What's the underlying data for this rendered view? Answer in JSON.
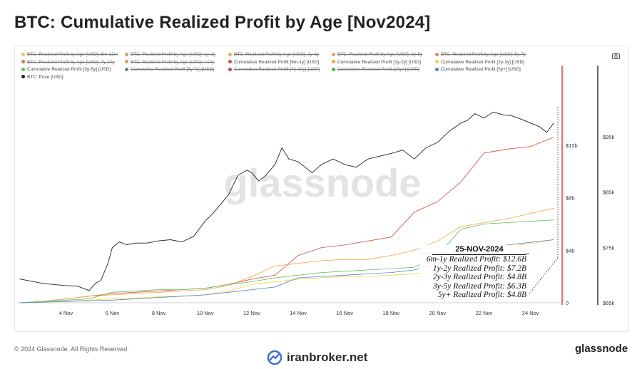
{
  "page": {
    "title": "BTC: Cumulative Realized Profit by Age [Nov2024]",
    "footer_left": "© 2024 Glassnode. All Rights Reserved.",
    "footer_right": "glassnode",
    "watermark": "glassnode",
    "broker": "iranbroker.net",
    "camera_icon": "camera-icon"
  },
  "legend": [
    {
      "label": "BTC: Realized Profit by Age [USD]: 6m-12m",
      "color": "#e7c56a",
      "struck": true
    },
    {
      "label": "BTC: Realized Profit by Age [USD]: 1y-2y",
      "color": "#e99a4f",
      "struck": true
    },
    {
      "label": "BTC: Realized Profit by Age [USD]: 2y-3y",
      "color": "#e3b24f",
      "struck": true
    },
    {
      "label": "BTC: Realized Profit by Age [USD]: 3y-5y",
      "color": "#e3a060",
      "struck": true
    },
    {
      "label": "BTC: Realized Profit by Age [USD]: 5y-7y",
      "color": "#e08a54",
      "struck": true
    },
    {
      "label": "BTC: Realized Profit by Age [USD]: 7y-10y",
      "color": "#d9743f",
      "struck": true
    },
    {
      "label": "BTC: Realized Profit by Age [USD]: >10y",
      "color": "#d9a140",
      "struck": true
    },
    {
      "label": "Cumulative Realized Profit [6m-1y] [USD]",
      "color": "#e0473e",
      "struck": false
    },
    {
      "label": "Cumulative Realized Profit [1y-2y] [USD]",
      "color": "#f3a43a",
      "struck": false
    },
    {
      "label": "Cumulative Realized Profit [2y-3y] [USD]",
      "color": "#f2d23a",
      "struck": false
    },
    {
      "label": "Cumulative Realized Profit [3y-5y] [USD]",
      "color": "#5cc05e",
      "struck": false
    },
    {
      "label": "Cumulative Realized Profit [5y-7y] [USD]",
      "color": "#3fa14a",
      "struck": true
    },
    {
      "label": "Cumulative Realized Profit [7y-10y] [USD]",
      "color": "#c8473e",
      "struck": true
    },
    {
      "label": "Cumulative Realized Profit [10y+] [USD]",
      "color": "#47b04a",
      "struck": true
    },
    {
      "label": "Cumulative Realized Profit [5y+] [USD]",
      "color": "#4f7fd6",
      "struck": false
    },
    {
      "label": "BTC: Price [USD]",
      "color": "#222222",
      "struck": false
    }
  ],
  "annotation": {
    "date": "25-NOV-2024",
    "lines": [
      "6m-1y Realized Profit: $12.6B",
      "1y-2y Realized Profit: $7.2B",
      "2y-3y Realized Profit: $4.8B",
      "3y-5y Realized Profit: $6.3B",
      "5y+ Realized Profit: $4.8B"
    ]
  },
  "chart_data": {
    "type": "line",
    "x_ticks": [
      "4 Nov",
      "6 Nov",
      "8 Nov",
      "10 Nov",
      "12 Nov",
      "14 Nov",
      "16 Nov",
      "18 Nov",
      "20 Nov",
      "22 Nov",
      "24 Nov"
    ],
    "x_tick_days": [
      4,
      6,
      8,
      10,
      12,
      14,
      16,
      18,
      20,
      22,
      24
    ],
    "x_range_days": [
      1.9,
      25.3
    ],
    "y_left_ticks": [
      "0",
      "$4b",
      "$8b",
      "$12b"
    ],
    "y_left_values": [
      0,
      4,
      8,
      12
    ],
    "y_left_range": [
      0,
      16
    ],
    "y_right_ticks": [
      "$65k",
      "$75k",
      "$85k",
      "$95k"
    ],
    "y_right_values": [
      65000,
      75000,
      85000,
      95000
    ],
    "y_right_range": [
      65000,
      103000
    ],
    "colors": {
      "red": "#e0473e",
      "orange": "#f3a43a",
      "yellow": "#f2d23a",
      "green": "#5cc05e",
      "blue": "#4f7fd6",
      "price": "#222222",
      "cursor": "#d22b2b"
    },
    "series": [
      {
        "name": "Cumulative Realized Profit [6m-1y] [USD]",
        "axis": "left",
        "color": "#e0473e",
        "x": [
          2,
          3,
          4,
          5,
          6,
          7,
          8,
          9,
          10,
          11,
          12,
          13,
          14,
          15,
          16,
          17,
          18,
          19,
          20,
          21,
          22,
          23,
          24,
          25
        ],
        "y": [
          0,
          0.1,
          0.3,
          0.5,
          0.7,
          0.8,
          0.9,
          1.0,
          1.1,
          1.4,
          1.8,
          2.1,
          3.6,
          4.2,
          4.4,
          4.7,
          5.0,
          6.9,
          7.7,
          9.2,
          11.4,
          11.7,
          11.9,
          12.6
        ]
      },
      {
        "name": "Cumulative Realized Profit [1y-2y] [USD]",
        "axis": "left",
        "color": "#f3a43a",
        "x": [
          2,
          3,
          4,
          5,
          6,
          7,
          8,
          9,
          10,
          11,
          12,
          13,
          14,
          15,
          16,
          17,
          18,
          19,
          20,
          21,
          22,
          23,
          24,
          25
        ],
        "y": [
          0,
          0.1,
          0.3,
          0.5,
          0.6,
          0.7,
          0.8,
          0.9,
          1.0,
          1.3,
          2.0,
          2.8,
          3.0,
          3.2,
          3.3,
          3.3,
          3.6,
          4.0,
          4.7,
          5.8,
          6.1,
          6.4,
          6.8,
          7.2
        ]
      },
      {
        "name": "Cumulative Realized Profit [2y-3y] [USD]",
        "axis": "left",
        "color": "#f2d23a",
        "x": [
          2,
          3,
          4,
          5,
          6,
          7,
          8,
          9,
          10,
          11,
          12,
          13,
          14,
          15,
          16,
          17,
          18,
          19,
          20,
          21,
          22,
          23,
          24,
          25
        ],
        "y": [
          0,
          0.05,
          0.1,
          0.2,
          0.3,
          0.35,
          0.45,
          0.5,
          0.6,
          0.9,
          1.4,
          1.6,
          1.8,
          1.9,
          2.0,
          2.0,
          2.1,
          2.2,
          2.4,
          3.8,
          4.0,
          4.3,
          4.5,
          4.8
        ]
      },
      {
        "name": "Cumulative Realized Profit [3y-5y] [USD]",
        "axis": "left",
        "color": "#5cc05e",
        "x": [
          2,
          3,
          4,
          5,
          6,
          7,
          8,
          9,
          10,
          11,
          12,
          13,
          14,
          15,
          16,
          17,
          18,
          19,
          20,
          21,
          22,
          23,
          24,
          25
        ],
        "y": [
          0,
          0.1,
          0.2,
          0.3,
          0.8,
          0.9,
          1.0,
          1.0,
          1.1,
          1.4,
          1.6,
          1.9,
          2.1,
          2.3,
          2.4,
          2.5,
          2.6,
          2.7,
          3.6,
          5.6,
          6.0,
          6.1,
          6.2,
          6.3
        ]
      },
      {
        "name": "Cumulative Realized Profit [5y+] [USD]",
        "axis": "left",
        "color": "#4f7fd6",
        "x": [
          2,
          3,
          4,
          5,
          6,
          7,
          8,
          9,
          10,
          11,
          12,
          13,
          14,
          15,
          16,
          17,
          18,
          19,
          20,
          21,
          22,
          23,
          24,
          25
        ],
        "y": [
          0,
          0.05,
          0.1,
          0.15,
          0.2,
          0.3,
          0.4,
          0.5,
          0.6,
          0.8,
          1.0,
          1.2,
          1.9,
          2.0,
          2.1,
          2.2,
          2.3,
          2.5,
          3.0,
          3.8,
          4.2,
          4.4,
          4.6,
          4.8
        ]
      },
      {
        "name": "BTC: Price [USD]",
        "axis": "right",
        "color": "#222222",
        "x": [
          2,
          2.5,
          3,
          3.5,
          4,
          4.5,
          5,
          5.3,
          5.5,
          5.8,
          6,
          6.3,
          6.6,
          7,
          7.5,
          8,
          8.5,
          9,
          9.5,
          10,
          10.3,
          10.6,
          11,
          11.4,
          11.8,
          12,
          12.3,
          12.6,
          13,
          13.3,
          13.6,
          14,
          14.3,
          14.6,
          15,
          15.5,
          16,
          16.5,
          17,
          17.5,
          18,
          18.5,
          19,
          19.5,
          20,
          20.5,
          21,
          21.3,
          21.6,
          22,
          22.4,
          22.8,
          23.2,
          23.6,
          24,
          24.4,
          24.7,
          25
        ],
        "y": [
          69300,
          68900,
          68500,
          68300,
          68100,
          68000,
          67200,
          68600,
          69000,
          72000,
          75000,
          76000,
          75500,
          75800,
          75800,
          76200,
          76400,
          76000,
          77000,
          79800,
          81000,
          82500,
          84500,
          88000,
          89000,
          88500,
          87000,
          88000,
          90000,
          93000,
          91000,
          90500,
          89500,
          88500,
          90000,
          91000,
          90000,
          89500,
          91000,
          91500,
          92000,
          92600,
          91000,
          93000,
          94000,
          96000,
          97500,
          98000,
          99200,
          98400,
          99500,
          99000,
          98800,
          98200,
          97500,
          96800,
          95800,
          97500
        ]
      }
    ]
  }
}
